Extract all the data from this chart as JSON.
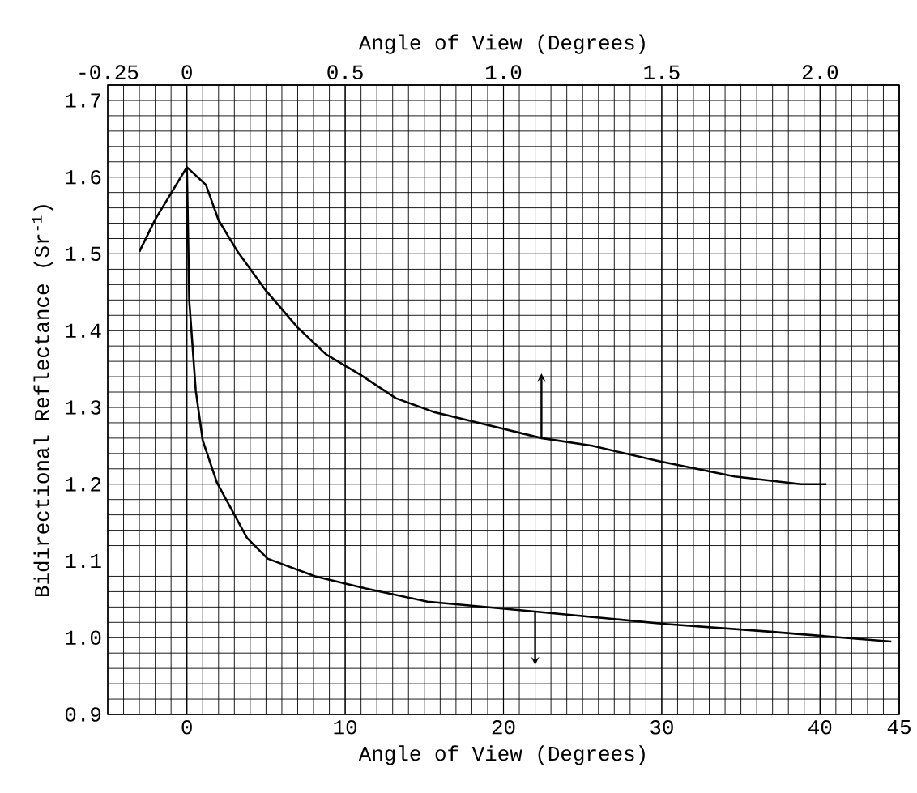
{
  "chart_data": {
    "type": "line",
    "xlabel": "Angle of View (Degrees)",
    "x2label": "Angle of View (Degrees)",
    "ylabel": "Bidirectional Reflectance (Sr$^{-1}$)",
    "xlim": [
      -5,
      45
    ],
    "xticks": [
      0,
      10,
      20,
      30,
      40,
      45
    ],
    "x2lim": [
      -0.25,
      2.25
    ],
    "x2ticks": [
      -0.25,
      0,
      0.5,
      {
        "value": 1,
        "label": "1.0"
      },
      1.5,
      {
        "value": 2,
        "label": "2.0"
      }
    ],
    "ylim": [
      0.9,
      1.72
    ],
    "yticks": [
      0.9,
      {
        "value": 1,
        "label": "1.0"
      },
      1.1,
      1.2,
      1.3,
      1.4,
      1.5,
      1.6,
      1.7
    ],
    "grid": true,
    "series": [
      {
        "axis": "x2",
        "color": "#000000",
        "x": [
          -0.15,
          -0.1,
          0,
          0.06,
          0.1,
          0.16,
          0.25,
          0.35,
          0.44,
          0.55,
          0.66,
          0.78,
          0.94,
          1.12,
          1.28,
          1.49,
          1.73,
          1.94,
          2.02
        ],
        "values": [
          1.503,
          1.545,
          1.613,
          1.59,
          1.544,
          1.503,
          1.452,
          1.404,
          1.369,
          1.342,
          1.312,
          1.294,
          1.278,
          1.26,
          1.25,
          1.23,
          1.21,
          1.2,
          1.2
        ]
      },
      {
        "color": "#000000",
        "x": [
          0,
          0.15,
          0.56,
          1.0,
          1.9,
          3.8,
          5.1,
          8.1,
          11.3,
          15.2,
          22.0,
          30.2,
          36.7,
          44.5
        ],
        "values": [
          1.613,
          1.439,
          1.322,
          1.257,
          1.202,
          1.13,
          1.103,
          1.08,
          1.064,
          1.047,
          1.034,
          1.018,
          1.008,
          0.995
        ]
      }
    ]
  }
}
